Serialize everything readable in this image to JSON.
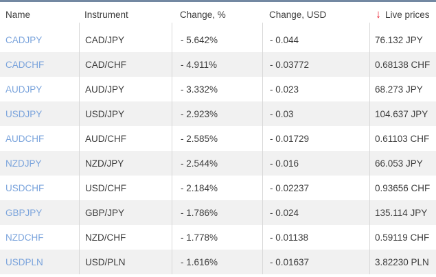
{
  "header": {
    "name": "Name",
    "instrument": "Instrument",
    "change_pct": "Change, %",
    "change_usd": "Change, USD",
    "live_prices": "Live prices",
    "sort_icon": "↓"
  },
  "colors": {
    "top_border": "#7388a2",
    "link_blue": "#7ba4dc",
    "row_alt_bg": "#f1f1f1",
    "divider": "#d8d8d8",
    "text": "#3d3d3d",
    "sort_arrow_red": "#ea1b2d"
  },
  "rows": [
    {
      "name": "CADJPY",
      "instrument": "CAD/JPY",
      "change_pct": "- 5.642%",
      "change_usd": "- 0.044",
      "live_price": "76.132 JPY"
    },
    {
      "name": "CADCHF",
      "instrument": "CAD/CHF",
      "change_pct": "- 4.911%",
      "change_usd": "- 0.03772",
      "live_price": "0.68138 CHF"
    },
    {
      "name": "AUDJPY",
      "instrument": "AUD/JPY",
      "change_pct": "- 3.332%",
      "change_usd": "- 0.023",
      "live_price": "68.273 JPY"
    },
    {
      "name": "USDJPY",
      "instrument": "USD/JPY",
      "change_pct": "- 2.923%",
      "change_usd": "- 0.03",
      "live_price": "104.637 JPY"
    },
    {
      "name": "AUDCHF",
      "instrument": "AUD/CHF",
      "change_pct": "- 2.585%",
      "change_usd": "- 0.01729",
      "live_price": "0.61103 CHF"
    },
    {
      "name": "NZDJPY",
      "instrument": "NZD/JPY",
      "change_pct": "- 2.544%",
      "change_usd": "- 0.016",
      "live_price": "66.053 JPY"
    },
    {
      "name": "USDCHF",
      "instrument": "USD/CHF",
      "change_pct": "- 2.184%",
      "change_usd": "- 0.02237",
      "live_price": "0.93656 CHF"
    },
    {
      "name": "GBPJPY",
      "instrument": "GBP/JPY",
      "change_pct": "- 1.786%",
      "change_usd": "- 0.024",
      "live_price": "135.114 JPY"
    },
    {
      "name": "NZDCHF",
      "instrument": "NZD/CHF",
      "change_pct": "- 1.778%",
      "change_usd": "- 0.01138",
      "live_price": "0.59119 CHF"
    },
    {
      "name": "USDPLN",
      "instrument": "USD/PLN",
      "change_pct": "- 1.616%",
      "change_usd": "- 0.01637",
      "live_price": "3.82230 PLN"
    }
  ]
}
